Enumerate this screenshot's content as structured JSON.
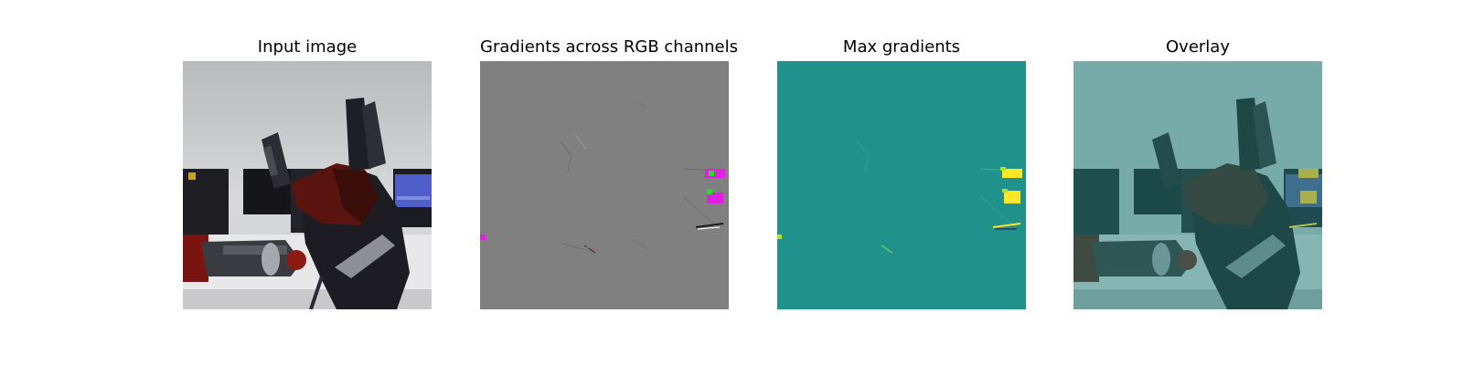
{
  "figure": {
    "panels": [
      {
        "title": "Input image",
        "content": "robot-arm-photo"
      },
      {
        "title": "Gradients across RGB channels",
        "content": "rgb-gradient-map"
      },
      {
        "title": "Max gradients",
        "content": "max-gradient-heatmap"
      },
      {
        "title": "Overlay",
        "content": "gradient-overlay-photo"
      }
    ],
    "colors": {
      "gradient_background": "#808080",
      "heatmap_background": "#21918c",
      "heatmap_high": "#fde725",
      "gradient_highlight_magenta": "#e020e0",
      "gradient_highlight_green": "#20e020"
    }
  }
}
